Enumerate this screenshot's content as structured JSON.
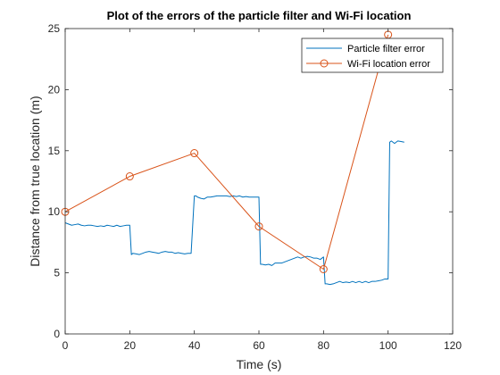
{
  "chart_data": {
    "type": "line",
    "title": "Plot of the errors of the particle filter and Wi-Fi location",
    "xlabel": "Time (s)",
    "ylabel": "Distance from true location (m)",
    "xlim": [
      0,
      120
    ],
    "ylim": [
      0,
      25
    ],
    "xticks": [
      0,
      20,
      40,
      60,
      80,
      100,
      120
    ],
    "yticks": [
      0,
      5,
      10,
      15,
      20,
      25
    ],
    "grid": false,
    "legend_position": "top-right",
    "series": [
      {
        "name": "Particle filter error",
        "color": "#0072BD",
        "marker": "none",
        "x": [
          0,
          1,
          2,
          3,
          4,
          5,
          6,
          7,
          8,
          9,
          10,
          11,
          12,
          13,
          14,
          15,
          16,
          17,
          18,
          19,
          20,
          20.5,
          21,
          22,
          23,
          24,
          25,
          26,
          27,
          28,
          29,
          30,
          31,
          32,
          33,
          34,
          35,
          36,
          37,
          38,
          39,
          40,
          40.5,
          41,
          42,
          43,
          44,
          45,
          46,
          47,
          48,
          49,
          50,
          51,
          52,
          53,
          54,
          55,
          56,
          57,
          58,
          59,
          60,
          60.5,
          61,
          62,
          63,
          64,
          65,
          66,
          67,
          68,
          69,
          70,
          71,
          72,
          73,
          74,
          75,
          76,
          77,
          78,
          79,
          80,
          80.5,
          81,
          82,
          83,
          84,
          85,
          86,
          87,
          88,
          89,
          90,
          91,
          92,
          93,
          94,
          95,
          96,
          97,
          98,
          99,
          100,
          100.5,
          101,
          102,
          103,
          104,
          105
        ],
        "y": [
          9.1,
          9.0,
          8.9,
          8.95,
          9.0,
          8.9,
          8.85,
          8.9,
          8.9,
          8.85,
          8.8,
          8.85,
          8.8,
          8.9,
          8.85,
          8.8,
          8.9,
          8.8,
          8.85,
          8.9,
          8.9,
          6.5,
          6.6,
          6.55,
          6.5,
          6.6,
          6.7,
          6.75,
          6.7,
          6.65,
          6.6,
          6.7,
          6.75,
          6.7,
          6.7,
          6.6,
          6.65,
          6.6,
          6.55,
          6.6,
          6.6,
          11.3,
          11.3,
          11.2,
          11.1,
          11.05,
          11.2,
          11.2,
          11.25,
          11.3,
          11.3,
          11.3,
          11.3,
          11.25,
          11.3,
          11.25,
          11.3,
          11.2,
          11.25,
          11.2,
          11.2,
          11.2,
          11.2,
          5.7,
          5.7,
          5.65,
          5.7,
          5.6,
          5.8,
          5.8,
          5.8,
          5.9,
          6.0,
          6.1,
          6.2,
          6.3,
          6.2,
          6.3,
          6.35,
          6.3,
          6.2,
          6.2,
          6.1,
          6.3,
          4.1,
          4.1,
          4.05,
          4.1,
          4.2,
          4.3,
          4.2,
          4.25,
          4.2,
          4.3,
          4.2,
          4.3,
          4.2,
          4.3,
          4.2,
          4.3,
          4.3,
          4.35,
          4.4,
          4.5,
          4.5,
          15.7,
          15.8,
          15.6,
          15.8,
          15.75,
          15.7
        ]
      },
      {
        "name": "Wi-Fi location error",
        "color": "#D95319",
        "marker": "circle",
        "x": [
          0,
          20,
          40,
          60,
          80,
          100
        ],
        "y": [
          10.0,
          12.9,
          14.8,
          8.8,
          5.3,
          24.5
        ]
      }
    ]
  }
}
